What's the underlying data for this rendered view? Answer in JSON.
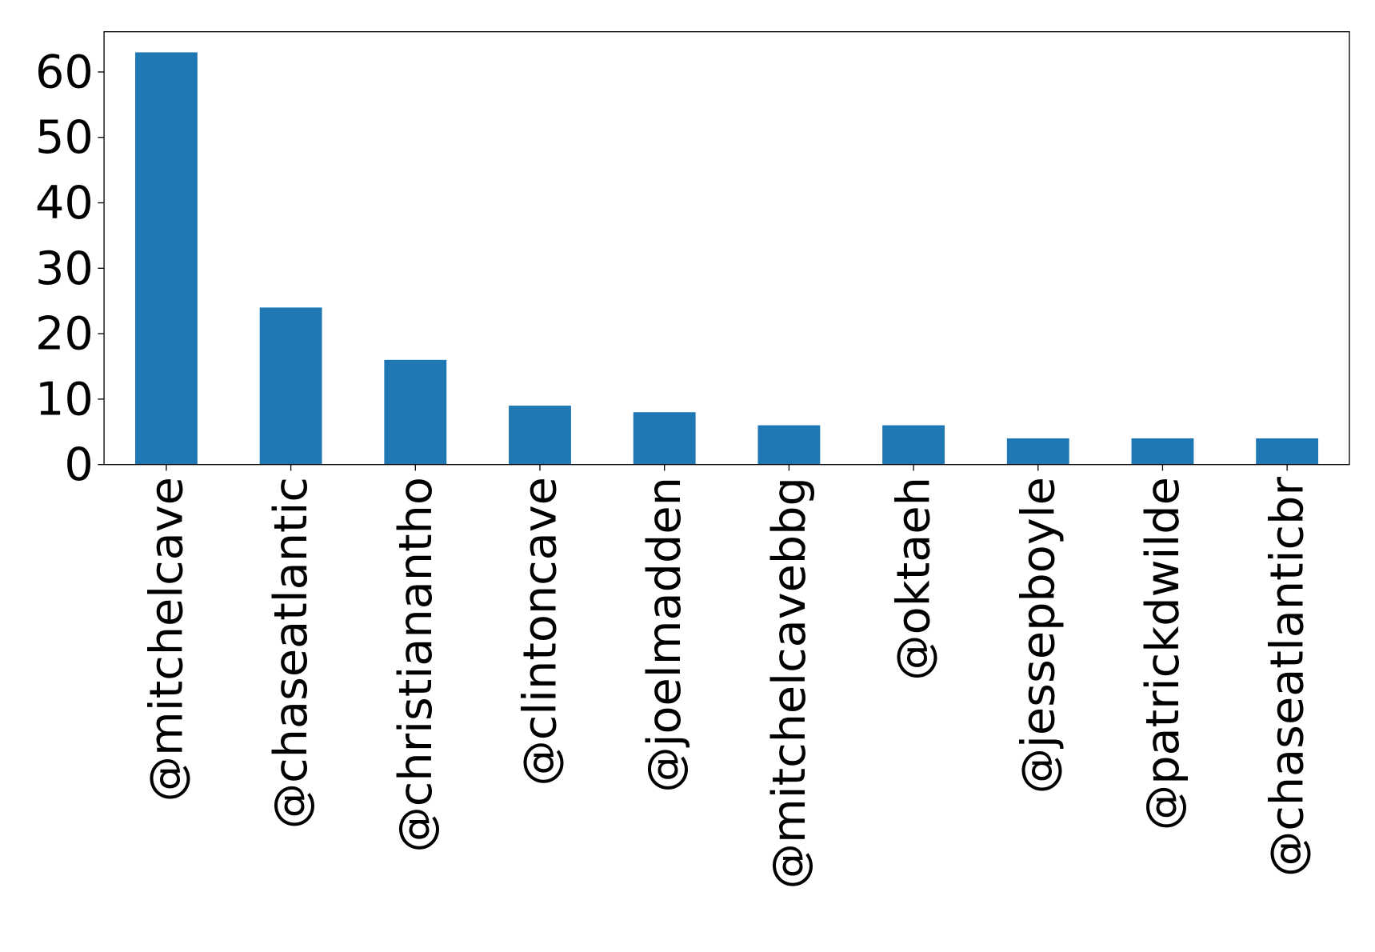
{
  "chart_data": {
    "type": "bar",
    "title": "",
    "xlabel": "",
    "ylabel": "",
    "categories": [
      "@mitchelcave",
      "@chaseatlantic",
      "@christianantho",
      "@clintoncave",
      "@joelmadden",
      "@mitchelcavebbg",
      "@oktaeh",
      "@jessepboyle",
      "@patrickdwilde",
      "@chaseatlanticbr"
    ],
    "values": [
      63,
      24,
      16,
      9,
      8,
      6,
      6,
      4,
      4,
      4
    ],
    "ylim": [
      0,
      66.15
    ],
    "yticks": [
      0,
      10,
      20,
      30,
      40,
      50,
      60
    ],
    "ytick_labels": [
      "0",
      "10",
      "20",
      "30",
      "40",
      "50",
      "60"
    ],
    "grid": false,
    "legend": "none",
    "bar_color": "#1f77b4"
  }
}
